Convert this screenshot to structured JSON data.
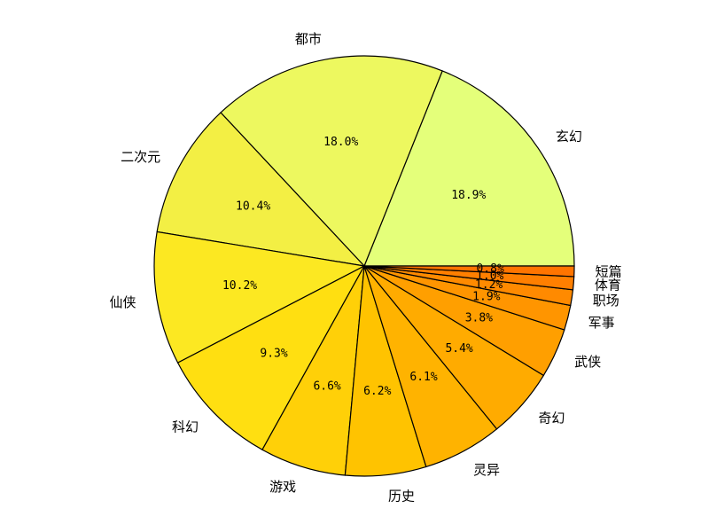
{
  "chart_data": {
    "type": "pie",
    "categories": [
      "玄幻",
      "都市",
      "二次元",
      "仙侠",
      "科幻",
      "游戏",
      "历史",
      "灵异",
      "奇幻",
      "武侠",
      "军事",
      "职场",
      "体育",
      "短篇"
    ],
    "values": [
      18.9,
      18.0,
      10.4,
      10.2,
      9.3,
      6.6,
      6.2,
      6.1,
      5.4,
      3.8,
      1.9,
      1.2,
      1.0,
      0.8
    ],
    "value_labels": [
      "18.9%",
      "18.0%",
      "10.4%",
      "10.2%",
      "9.3%",
      "6.6%",
      "6.2%",
      "6.1%",
      "5.4%",
      "3.8%",
      "1.9%",
      "1.2%",
      "1.0%",
      "0.8%"
    ],
    "colors": [
      "#E4FF7A",
      "#EDF85F",
      "#F3EF44",
      "#FCE822",
      "#FFDF11",
      "#FFD008",
      "#FFC300",
      "#FFB300",
      "#FFAB00",
      "#FF9F00",
      "#FF9500",
      "#FF8A00",
      "#FF7F00",
      "#FF7400"
    ],
    "start_angle_deg": 0,
    "direction": "counterclockwise",
    "legend": "none"
  }
}
